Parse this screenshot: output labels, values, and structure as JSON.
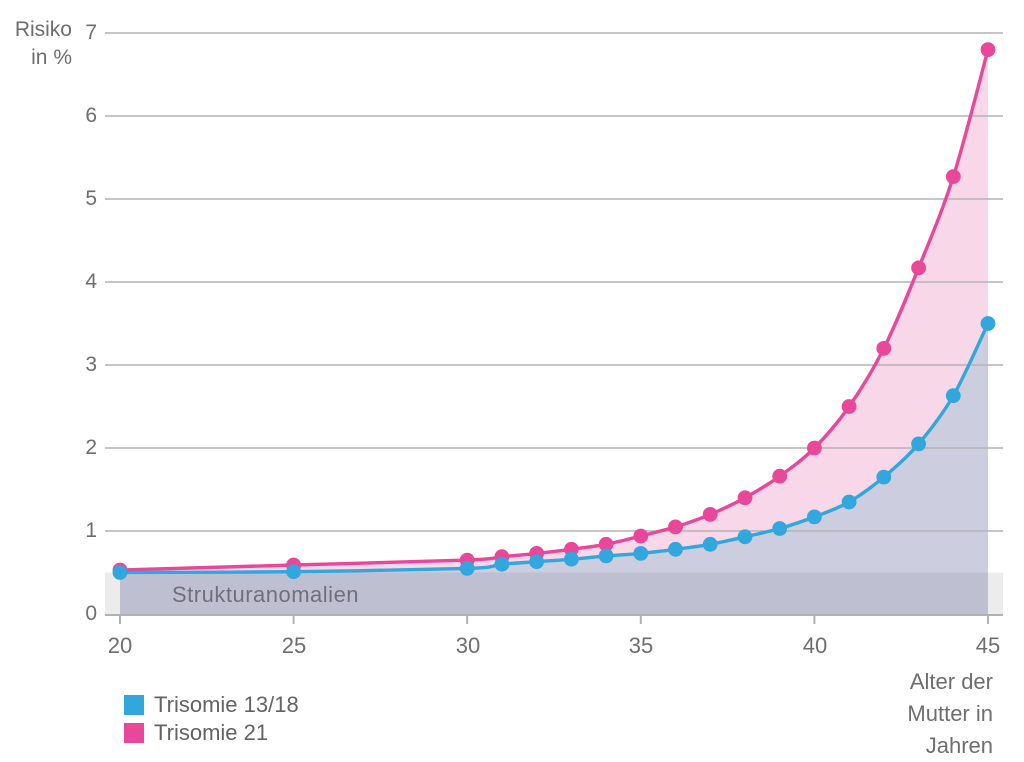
{
  "y_axis": {
    "title_line1": "Risiko",
    "title_line2": "in %",
    "ticks": [
      "0",
      "1",
      "2",
      "3",
      "4",
      "5",
      "6",
      "7"
    ]
  },
  "x_axis": {
    "ticks": [
      "20",
      "25",
      "30",
      "35",
      "40",
      "45"
    ],
    "tick_values": [
      20,
      25,
      30,
      35,
      40,
      45
    ],
    "title_lines": [
      "Alter der",
      "Mutter in",
      "Jahren"
    ]
  },
  "band": {
    "label": "Strukturanomalien",
    "from": 0,
    "to": 0.5,
    "color": "#ececec",
    "label_color": "#70707c"
  },
  "legend": {
    "items": [
      {
        "label": "Trisomie 13/18",
        "color": "#31a7de"
      },
      {
        "label": "Trisomie 21",
        "color": "#e9479a"
      }
    ]
  },
  "chart_data": {
    "type": "line",
    "title": "",
    "xlabel": "Alter der Mutter in Jahren",
    "ylabel": "Risiko in %",
    "xlim": [
      20,
      45
    ],
    "ylim": [
      0,
      7
    ],
    "grid": true,
    "grid_color": "#b3b3b3",
    "axis_color": "#b0b0b6",
    "x": [
      20,
      25,
      30,
      31,
      32,
      33,
      34,
      35,
      36,
      37,
      38,
      39,
      40,
      41,
      42,
      43,
      44,
      45
    ],
    "series": [
      {
        "name": "Trisomie 13/18",
        "color": "#31a7de",
        "area_fill": "rgba(70,70,140,0.27)",
        "values": [
          0.5,
          0.51,
          0.55,
          0.6,
          0.63,
          0.66,
          0.7,
          0.73,
          0.78,
          0.84,
          0.93,
          1.03,
          1.17,
          1.35,
          1.65,
          2.05,
          2.63,
          3.5
        ]
      },
      {
        "name": "Trisomie 21",
        "color": "#e9479a",
        "area_fill": "#f8d7e8",
        "values": [
          0.53,
          0.59,
          0.65,
          0.69,
          0.73,
          0.78,
          0.84,
          0.94,
          1.05,
          1.2,
          1.4,
          1.66,
          2.0,
          2.5,
          3.2,
          4.17,
          5.27,
          6.8
        ]
      }
    ],
    "annotation_band": {
      "label": "Strukturanomalien",
      "y_from": 0,
      "y_to": 0.5
    }
  }
}
